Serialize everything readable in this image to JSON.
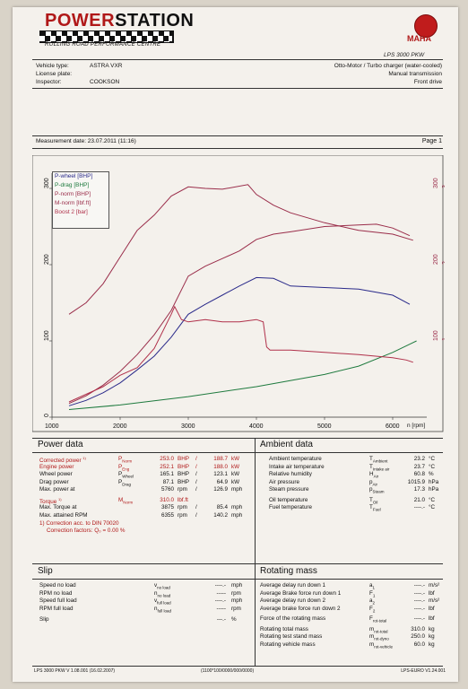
{
  "header": {
    "brand_a": "POWER",
    "brand_b": "STATION",
    "tagline": "ROLLING ROAD PERFORMANCE CENTRE",
    "maha": "MAHA",
    "model": "LPS 3000 PKW"
  },
  "vehicle": {
    "type_label": "Vehicle type:",
    "type_value": "ASTRA VXR",
    "plate_label": "License plate:",
    "plate_value": "",
    "inspector_label": "Inspector:",
    "inspector_value": "COOKSON",
    "engine": "Otto-Motor / Turbo charger (water-cooled)",
    "transmission": "Manual transmission",
    "drive": "Front drive"
  },
  "measurement": {
    "date_label": "Measurement date: 23.07.2011 (11:16)",
    "page": "Page 1"
  },
  "chart_data": {
    "type": "line",
    "xlabel": "n [rpm]",
    "xlim": [
      1000,
      6500
    ],
    "xticks": [
      1000,
      2000,
      3000,
      4000,
      5000,
      6000
    ],
    "ylim_left": [
      0,
      320
    ],
    "yticks_left": [
      0,
      100,
      200,
      300
    ],
    "yticks_right": [
      "1",
      "2",
      "3"
    ],
    "right_top_labels": [
      "300",
      "200",
      "100"
    ],
    "legend": [
      "P-wheel [BHP]",
      "P-drag [BHP]",
      "P-norm [BHP]",
      "M-norm [lbf.ft]",
      "Boost 2 [bar]"
    ],
    "colors": {
      "p_wheel": "#2a2a8a",
      "p_drag": "#1e7a3e",
      "p_norm": "#9a2d4a",
      "m_norm": "#9a2d4a",
      "boost": "#b0304a"
    },
    "series": [
      {
        "name": "P-wheel [BHP]",
        "x": [
          1250,
          1500,
          1750,
          2000,
          2250,
          2500,
          2750,
          3000,
          3250,
          3500,
          3750,
          4000,
          4250,
          4500,
          5000,
          5500,
          6000,
          6250
        ],
        "y": [
          15,
          22,
          32,
          45,
          62,
          80,
          105,
          135,
          148,
          160,
          172,
          183,
          182,
          172,
          170,
          168,
          160,
          148
        ]
      },
      {
        "name": "P-drag [BHP]",
        "x": [
          1250,
          2000,
          3000,
          4000,
          5000,
          5500,
          6000,
          6350
        ],
        "y": [
          10,
          16,
          27,
          40,
          56,
          67,
          85,
          100
        ]
      },
      {
        "name": "P-norm [BHP]",
        "x": [
          1250,
          1500,
          1750,
          2000,
          2250,
          2500,
          2750,
          3000,
          3250,
          3500,
          3750,
          4000,
          4250,
          4500,
          5000,
          5500,
          5760,
          6000,
          6250
        ],
        "y": [
          18,
          28,
          42,
          60,
          82,
          108,
          140,
          185,
          198,
          208,
          218,
          233,
          240,
          243,
          250,
          252,
          253,
          248,
          238
        ]
      },
      {
        "name": "M-norm [lbf.ft]",
        "x": [
          1250,
          1500,
          1750,
          2000,
          2250,
          2500,
          2750,
          3000,
          3250,
          3500,
          3875,
          4000,
          4250,
          4500,
          5000,
          5500,
          6000,
          6300
        ],
        "y": [
          135,
          150,
          175,
          210,
          245,
          265,
          290,
          302,
          300,
          299,
          305,
          292,
          278,
          268,
          255,
          245,
          240,
          232
        ]
      },
      {
        "name": "Boost 2 [bar]",
        "x": [
          1250,
          1500,
          1750,
          2000,
          2250,
          2500,
          2750,
          2800,
          2900,
          3000,
          3250,
          3500,
          3750,
          4000,
          4100,
          4150,
          4200,
          4500,
          5000,
          5500,
          6000,
          6200,
          6300
        ],
        "y": [
          20,
          30,
          40,
          55,
          65,
          90,
          135,
          145,
          128,
          125,
          128,
          125,
          125,
          128,
          125,
          92,
          88,
          88,
          85,
          82,
          78,
          75,
          72
        ]
      }
    ]
  },
  "power": {
    "title": "Power data",
    "rows": [
      {
        "label": "Corrected power",
        "sup": "1)",
        "sym": "P",
        "sub": "Norm",
        "v1": "253.0",
        "u1": "BHP",
        "sep": "/",
        "v2": "188.7",
        "u2": "kW"
      },
      {
        "label": "Engine power",
        "sup": "",
        "sym": "P",
        "sub": "Eng",
        "v1": "252.1",
        "u1": "BHP",
        "sep": "/",
        "v2": "188.0",
        "u2": "kW"
      },
      {
        "label": "Wheel power",
        "sup": "",
        "sym": "P",
        "sub": "Wheel",
        "v1": "165.1",
        "u1": "BHP",
        "sep": "/",
        "v2": "123.1",
        "u2": "kW"
      },
      {
        "label": "Drag power",
        "sup": "",
        "sym": "P",
        "sub": "Drag",
        "v1": "87.1",
        "u1": "BHP",
        "sep": "/",
        "v2": "64.9",
        "u2": "kW"
      },
      {
        "label": "Max. power at",
        "sup": "",
        "sym": "",
        "sub": "",
        "v1": "5760",
        "u1": "rpm",
        "sep": "/",
        "v2": "126.9",
        "u2": "mph"
      }
    ],
    "torque": {
      "label": "Torque",
      "sup": "1)",
      "sym": "M",
      "sub": "Norm",
      "v1": "310.0",
      "u1": "lbf.ft"
    },
    "torque_at": {
      "label": "Max. Torque at",
      "v1": "3875",
      "u1": "rpm",
      "sep": "/",
      "v2": "85.4",
      "u2": "mph"
    },
    "max_rpm": {
      "label": "Max. attained RPM",
      "v1": "6355",
      "u1": "rpm",
      "sep": "/",
      "v2": "140.2",
      "u2": "mph"
    },
    "note1": "1) Correction acc. to DIN 70020",
    "note2": "Correction factors: Q₀ =  0.00 %"
  },
  "ambient": {
    "title": "Ambient data",
    "rows": [
      {
        "label": "Ambient temperature",
        "sym": "T",
        "sub": "Ambient",
        "val": "23.2",
        "unit": "°C"
      },
      {
        "label": "Intake air temperature",
        "sym": "T",
        "sub": "Intake air",
        "val": "23.7",
        "unit": "°C"
      },
      {
        "label": "Relative humidity",
        "sym": "H",
        "sub": "Air",
        "val": "60.8",
        "unit": "%"
      },
      {
        "label": "Air pressure",
        "sym": "p",
        "sub": "Air",
        "val": "1015.9",
        "unit": "hPa"
      },
      {
        "label": "Steam pressure",
        "sym": "p",
        "sub": "Steam",
        "val": "17.3",
        "unit": "hPa"
      },
      {
        "label": "Oil temperature",
        "sym": "T",
        "sub": "Oil",
        "val": "21.0",
        "unit": "°C"
      },
      {
        "label": "Fuel temperature",
        "sym": "T",
        "sub": "Fuel",
        "val": "----.-",
        "unit": "°C"
      }
    ]
  },
  "slip": {
    "title": "Slip",
    "rows": [
      {
        "label": "Speed no load",
        "sym": "v",
        "sub": "no load",
        "val": "----.-",
        "unit": "mph"
      },
      {
        "label": "RPM no load",
        "sym": "n",
        "sub": "no load",
        "val": "-----",
        "unit": "rpm"
      },
      {
        "label": "Speed full load",
        "sym": "v",
        "sub": "full load",
        "val": "----.-",
        "unit": "mph"
      },
      {
        "label": "RPM full load",
        "sym": "n",
        "sub": "full load",
        "val": "-----",
        "unit": "rpm"
      },
      {
        "label": "Slip",
        "sym": "",
        "sub": "",
        "val": "---.-",
        "unit": "%"
      }
    ]
  },
  "rotating": {
    "title": "Rotating mass",
    "rows": [
      {
        "label": "Average delay run down 1",
        "sym": "a",
        "sub": "1",
        "val": "----.-",
        "unit": "m/s²"
      },
      {
        "label": "Average Brake force run down 1",
        "sym": "F",
        "sub": "1",
        "val": "----.-",
        "unit": "lbf"
      },
      {
        "label": "Average delay run down 2",
        "sym": "a",
        "sub": "2",
        "val": "----.-",
        "unit": "m/s²"
      },
      {
        "label": "Average brake force run down 2",
        "sym": "F",
        "sub": "2",
        "val": "----.-",
        "unit": "lbf"
      },
      {
        "label": "Force of the rotating mass",
        "sym": "F",
        "sub": "rot-total",
        "val": "----.-",
        "unit": "lbf"
      },
      {
        "label": "Rotating total mass",
        "sym": "m",
        "sub": "rot-total",
        "val": "310.0",
        "unit": "kg"
      },
      {
        "label": "Rotating test stand mass",
        "sym": "m",
        "sub": "rot-dyno",
        "val": "250.0",
        "unit": "kg"
      },
      {
        "label": "Rotating vehicle mass",
        "sym": "m",
        "sub": "rot-vehicle",
        "val": "60.0",
        "unit": "kg"
      }
    ]
  },
  "footer": {
    "left": "LPS 3000 PKW V 1.08.001 (16.02.2007)",
    "mid": "(1100*100/0000/000/0000)",
    "right": "LPS-EURO V1.24.001"
  }
}
